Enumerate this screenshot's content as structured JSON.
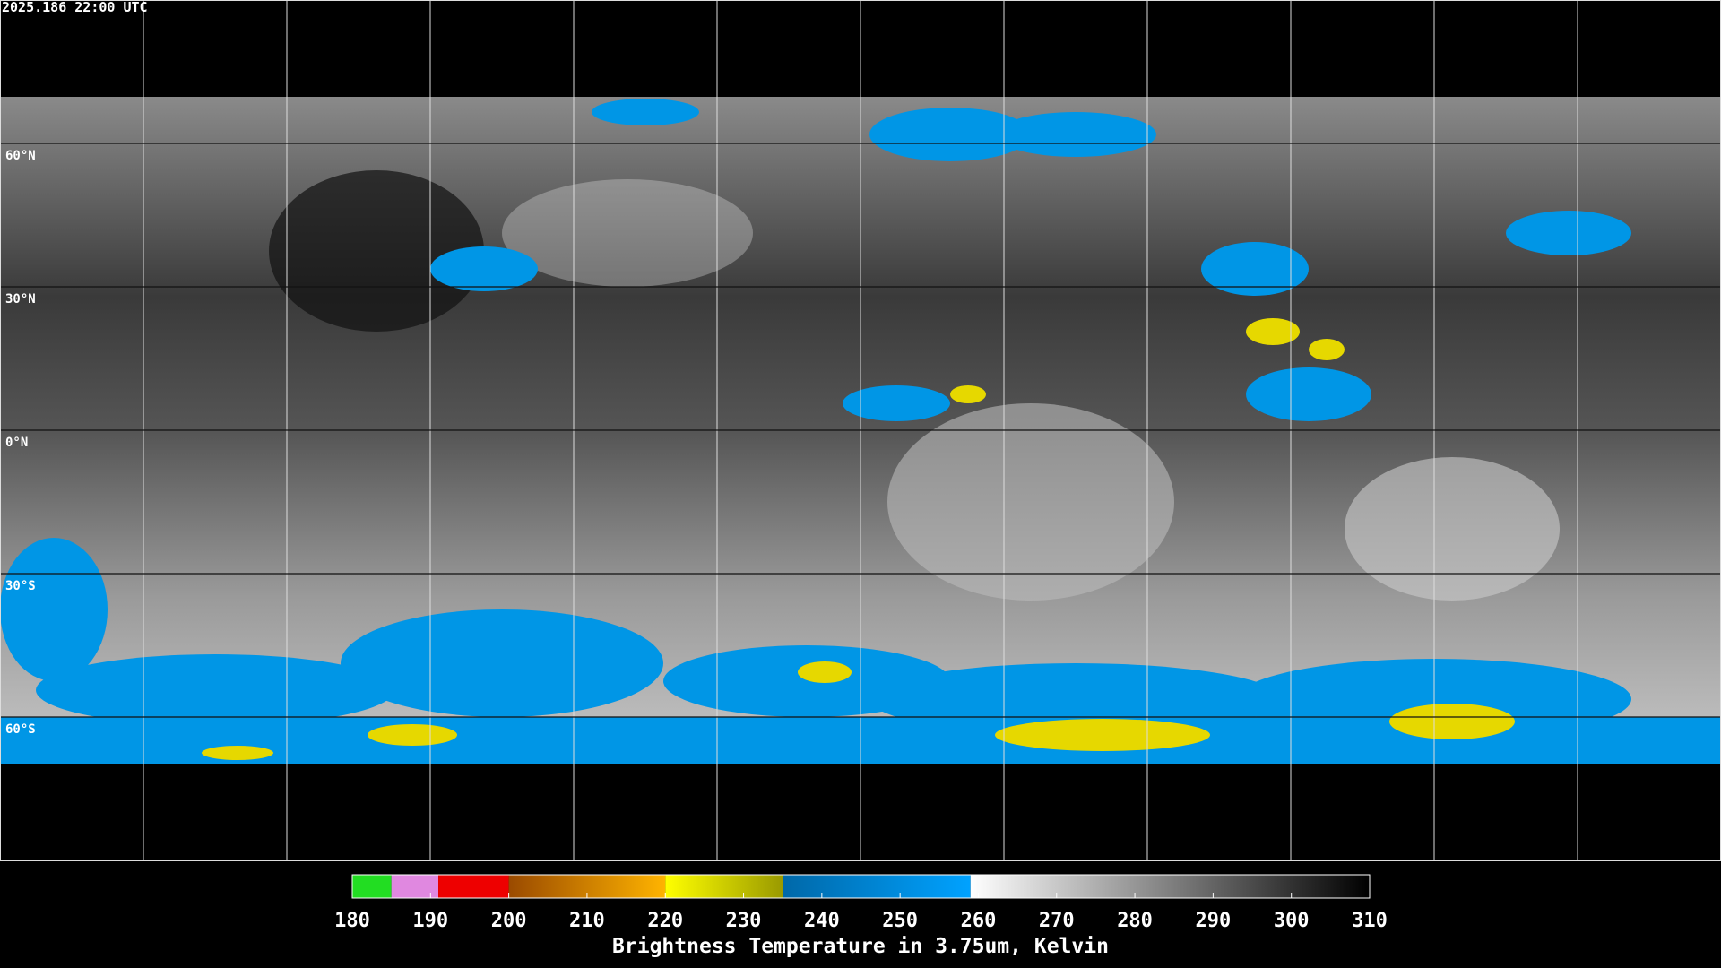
{
  "header": {
    "timestamp": "2025.186 22:00 UTC"
  },
  "map": {
    "lon_range": [
      -180,
      180
    ],
    "lat_range": [
      -90,
      90
    ],
    "latitudes": [
      {
        "value": 60,
        "label": "60°N"
      },
      {
        "value": 30,
        "label": "30°N"
      },
      {
        "value": 0,
        "label": "0°N"
      },
      {
        "value": -30,
        "label": "30°S"
      },
      {
        "value": -60,
        "label": "60°S"
      }
    ],
    "longitudes": [
      -150,
      -120,
      -90,
      -60,
      -30,
      0,
      30,
      60,
      90,
      120,
      150
    ]
  },
  "colorbar": {
    "title": "Brightness Temperature in 3.75um, Kelvin",
    "range": [
      180,
      310
    ],
    "ticks": [
      180,
      190,
      200,
      210,
      220,
      230,
      240,
      250,
      260,
      270,
      280,
      290,
      300,
      310
    ],
    "segments": [
      {
        "from": 180,
        "to": 185,
        "colors": [
          "#22dd22",
          "#22dd22"
        ]
      },
      {
        "from": 185,
        "to": 191,
        "colors": [
          "#e088e0",
          "#e088e0"
        ]
      },
      {
        "from": 191,
        "to": 200,
        "colors": [
          "#ee0000",
          "#ee0000"
        ]
      },
      {
        "from": 200,
        "to": 220,
        "colors": [
          "#9a4a00",
          "#ffb400"
        ]
      },
      {
        "from": 220,
        "to": 235,
        "colors": [
          "#ffff00",
          "#9a9a00"
        ]
      },
      {
        "from": 235,
        "to": 259,
        "colors": [
          "#0068a8",
          "#00a2ff"
        ]
      },
      {
        "from": 259,
        "to": 310,
        "colors": [
          "#ffffff",
          "#000000"
        ]
      }
    ]
  }
}
